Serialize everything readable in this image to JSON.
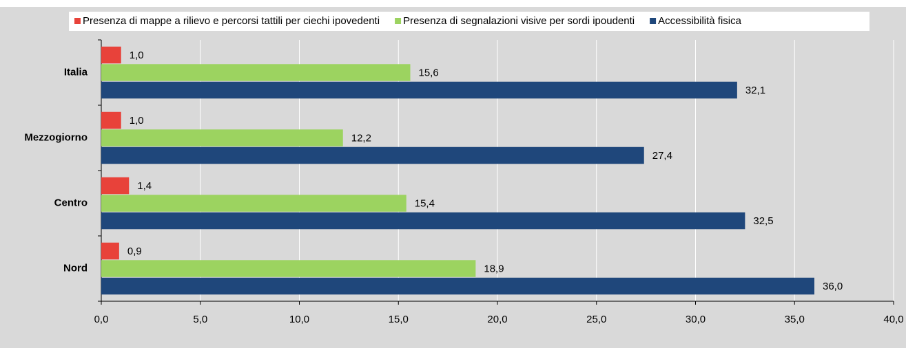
{
  "chart_data": {
    "type": "hbar",
    "categories": [
      "Italia",
      "Mezzogiorno",
      "Centro",
      "Nord"
    ],
    "series": [
      {
        "name": "Presenza di mappe a rilievo e percorsi tattili per ciechi ipovedenti",
        "color": "#e8423a",
        "values": [
          1.0,
          1.0,
          1.4,
          0.9
        ],
        "value_labels": [
          "1,0",
          "1,0",
          "1,4",
          "0,9"
        ]
      },
      {
        "name": "Presenza di segnalazioni visive per sordi ipoudenti",
        "color": "#9cd360",
        "values": [
          15.6,
          12.2,
          15.4,
          18.9
        ],
        "value_labels": [
          "15,6",
          "12,2",
          "15,4",
          "18,9"
        ]
      },
      {
        "name": "Accessibilità fisica",
        "color": "#1f477b",
        "values": [
          32.1,
          27.4,
          32.5,
          36.0
        ],
        "value_labels": [
          "32,1",
          "27,4",
          "32,5",
          "36,0"
        ]
      }
    ],
    "xlim": [
      0,
      40
    ],
    "xticks": [
      {
        "value": 0,
        "label": "0,0"
      },
      {
        "value": 5,
        "label": "5,0"
      },
      {
        "value": 10,
        "label": "10,0"
      },
      {
        "value": 15,
        "label": "15,0"
      },
      {
        "value": 20,
        "label": "20,0"
      },
      {
        "value": 25,
        "label": "25,0"
      },
      {
        "value": 30,
        "label": "30,0"
      },
      {
        "value": 35,
        "label": "35,0"
      },
      {
        "value": 40,
        "label": "40,0"
      }
    ],
    "grid": true,
    "legend": "top"
  }
}
